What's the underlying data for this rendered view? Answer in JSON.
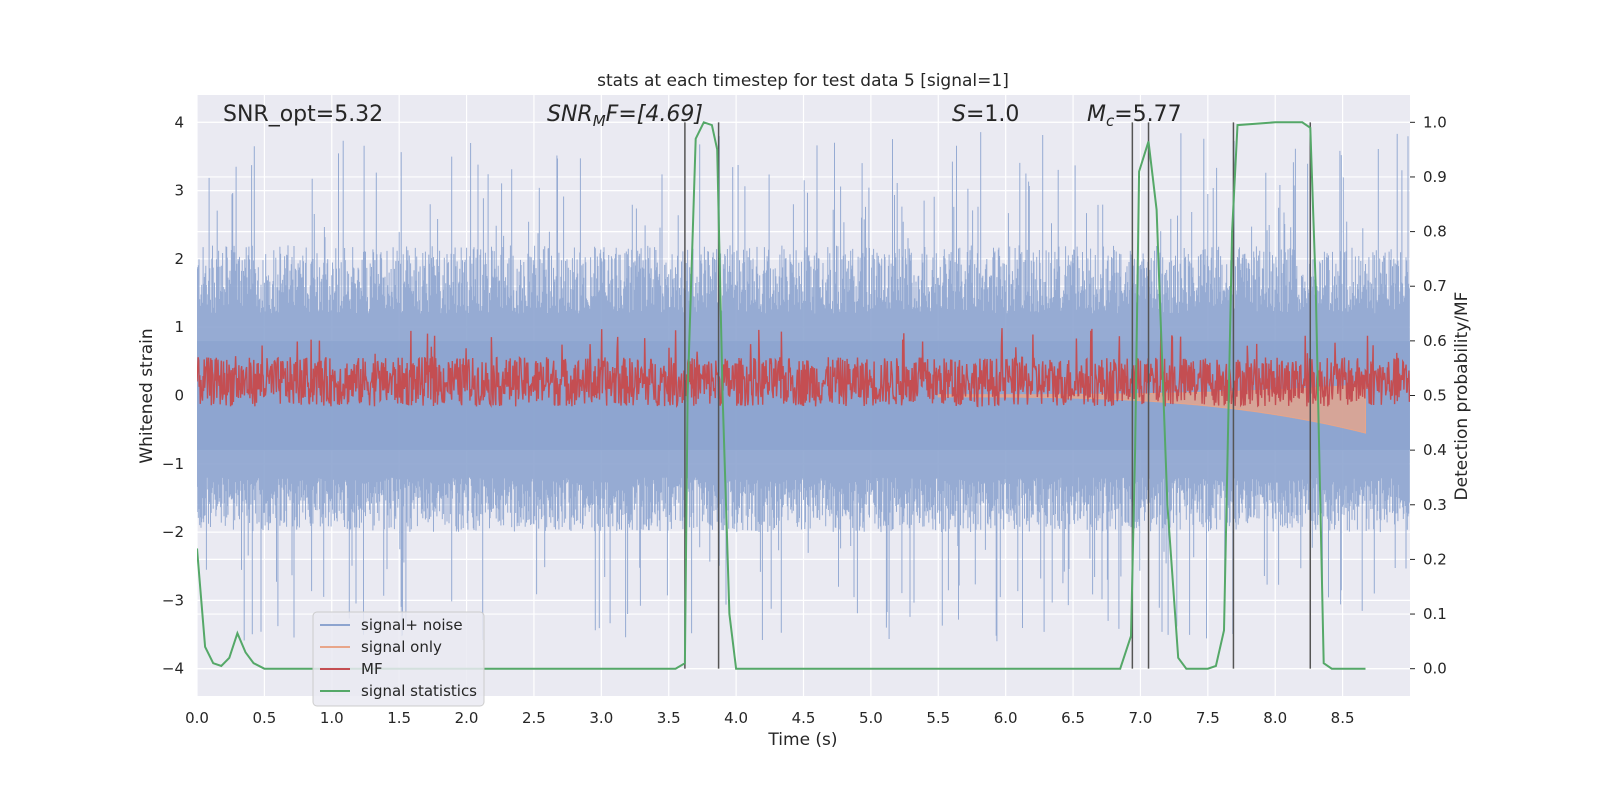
{
  "title": "stats at each timestep for test data 5 [signal=1]",
  "chart_data": {
    "type": "line",
    "title": "stats at each timestep for test data 5 [signal=1]",
    "xlabel": "Time (s)",
    "ylabel": "Whitened strain",
    "ylabel_right": "Detection probability/MF",
    "xlim": [
      0,
      9.0
    ],
    "ylim": [
      -4.4,
      4.4
    ],
    "ylim_right": [
      -0.05,
      1.05
    ],
    "x_ticks": [
      "0.0",
      "0.5",
      "1.0",
      "1.5",
      "2.0",
      "2.5",
      "3.0",
      "3.5",
      "4.0",
      "4.5",
      "5.0",
      "5.5",
      "6.0",
      "6.5",
      "7.0",
      "7.5",
      "8.0",
      "8.5"
    ],
    "y_ticks": [
      "4",
      "3",
      "2",
      "1",
      "0",
      "−1",
      "−2",
      "−3",
      "−4"
    ],
    "y_ticks_right": [
      "1.0",
      "0.9",
      "0.8",
      "0.7",
      "0.6",
      "0.5",
      "0.4",
      "0.3",
      "0.2",
      "0.1",
      "0.0"
    ],
    "grid": true,
    "legend_position": "lower-left",
    "annotations": {
      "snr_opt": "SNR_opt=5.32",
      "snr_mf_base": "SNR",
      "snr_mf_sub": "M",
      "snr_mf_rest": "F=[4.69]",
      "s_italic": "S",
      "s_rest": "=1.0",
      "mc_italic": "M",
      "mc_sub": "c",
      "mc_rest": "=5.77"
    },
    "series": [
      {
        "name": "signal+ noise",
        "color": "#8da4cf",
        "envelope_hi": 1.6,
        "envelope_lo": -1.6,
        "peak": 3.9
      },
      {
        "name": "signal only",
        "color": "#e8a589",
        "x_start": 5.5,
        "x_end": 8.67,
        "y_end": -0.55
      },
      {
        "name": "MF",
        "color": "#c44e52",
        "center_right": 0.525,
        "amplitude_right": 0.045
      },
      {
        "name": "signal statistics",
        "color": "#55a868",
        "x": [
          0.0,
          0.06,
          0.12,
          0.18,
          0.24,
          0.3,
          0.36,
          0.42,
          0.5,
          1.0,
          2.0,
          3.0,
          3.55,
          3.62,
          3.64,
          3.7,
          3.76,
          3.82,
          3.86,
          3.9,
          3.95,
          4.0,
          4.5,
          5.0,
          6.0,
          6.5,
          6.85,
          6.93,
          6.96,
          6.99,
          7.06,
          7.12,
          7.2,
          7.28,
          7.34,
          7.4,
          7.5,
          7.56,
          7.62,
          7.68,
          7.72,
          8.0,
          8.2,
          8.26,
          8.3,
          8.36,
          8.42,
          8.5,
          8.67
        ],
        "y": [
          0.22,
          0.04,
          0.01,
          0.005,
          0.02,
          0.065,
          0.03,
          0.01,
          0.0,
          0.0,
          0.0,
          0.0,
          0.0,
          0.01,
          0.5,
          0.97,
          1.0,
          0.995,
          0.95,
          0.5,
          0.1,
          0.0,
          0.0,
          0.0,
          0.0,
          0.0,
          0.0,
          0.06,
          0.4,
          0.91,
          0.965,
          0.84,
          0.3,
          0.02,
          0.0,
          0.0,
          0.0,
          0.005,
          0.07,
          0.8,
          0.995,
          1.0,
          1.0,
          0.99,
          0.7,
          0.01,
          0.0,
          0.0,
          0.0
        ]
      }
    ],
    "vlines": [
      3.62,
      3.87,
      6.94,
      7.06,
      7.69,
      8.26
    ]
  }
}
